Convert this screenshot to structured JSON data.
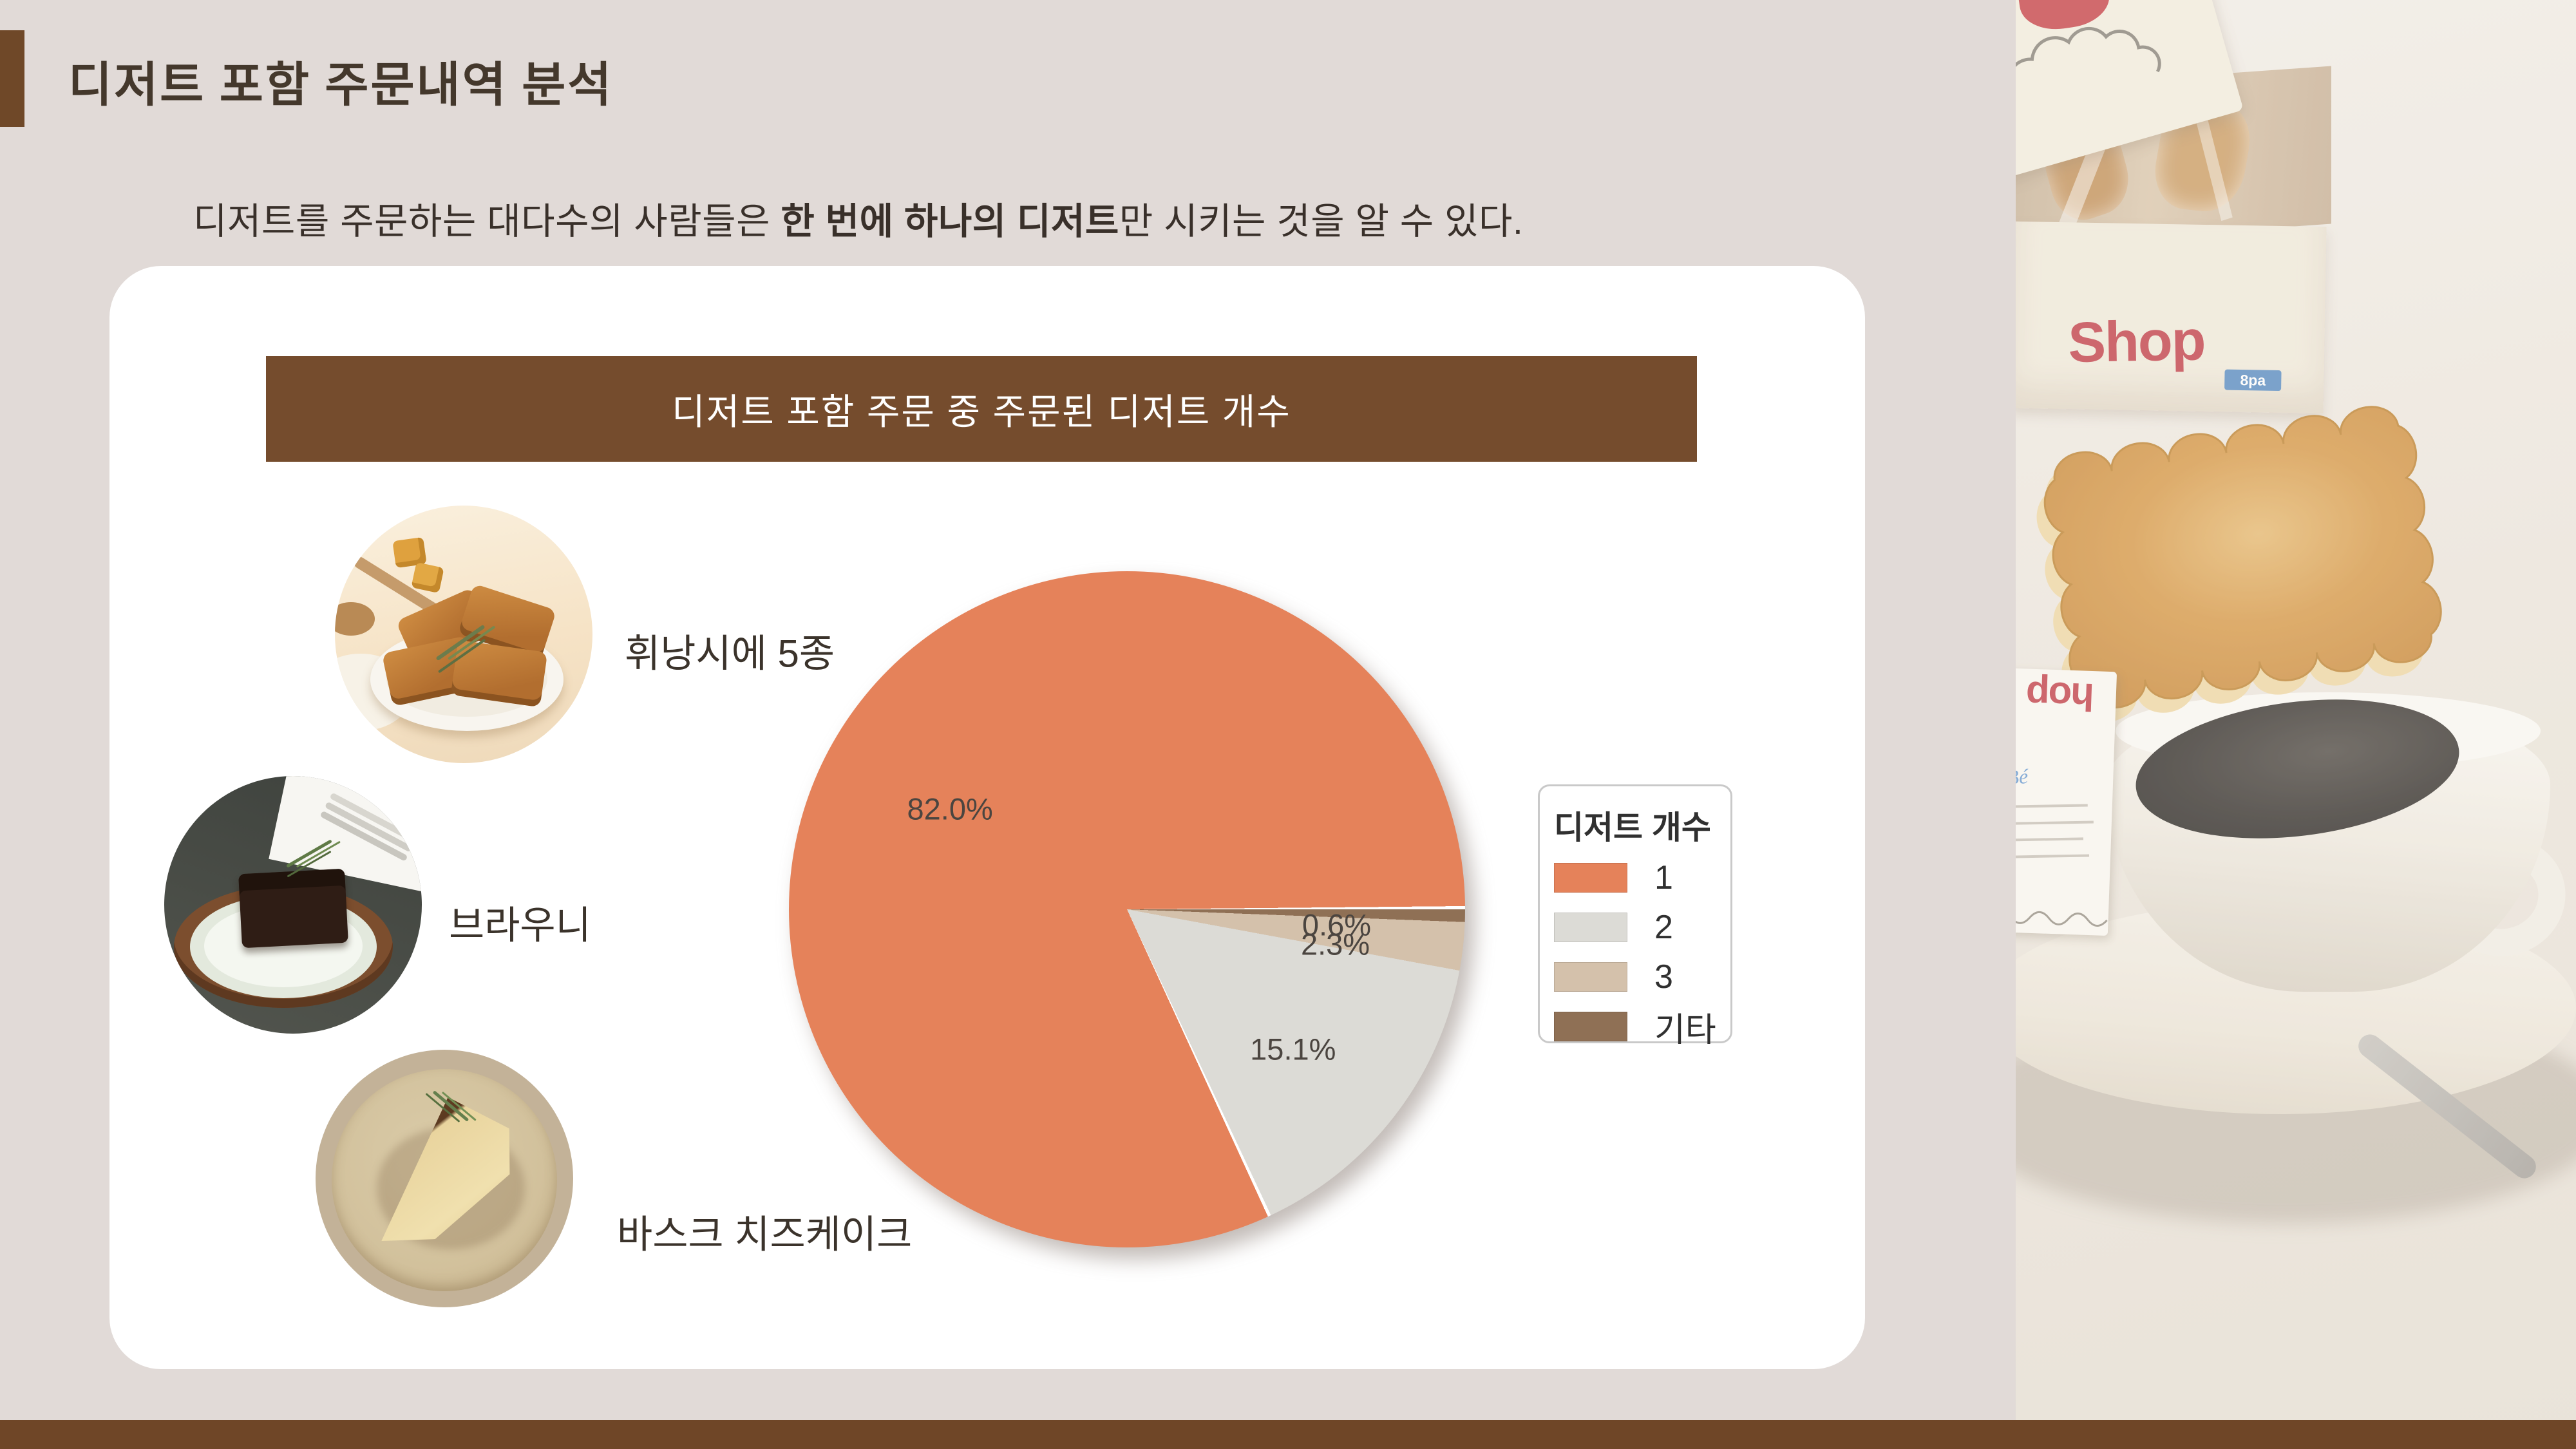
{
  "colors": {
    "background": "#E1DAD7",
    "card": "#FFFFFF",
    "accent_bar": "#6F4828",
    "banner_bg": "#754C2D",
    "banner_text": "#FFFFFF",
    "title_text": "#44382C",
    "subtitle_text": "#39302A",
    "label_text": "#3B332B",
    "pct_text": "#4B4540",
    "legend_border": "#C9C9C9",
    "legend_text": "#303030",
    "footer": "#6F4627"
  },
  "header": {
    "title": "디저트 포함 주문내역 분석"
  },
  "subtitle": {
    "pre": "디저트를 주문하는 대다수의 사람들은 ",
    "bold": "한 번에 하나의 디저트",
    "post": "만 시키는 것을 알 수 있다."
  },
  "foods": [
    {
      "label": "휘낭시에 5종"
    },
    {
      "label": "브라우니"
    },
    {
      "label": "바스크 치즈케이크"
    }
  ],
  "chart_data": {
    "type": "pie",
    "title": "디저트 포함 주문 중 주문된 디저트 개수",
    "legend_title": "디저트 개수",
    "labels": [
      "1",
      "2",
      "3",
      "기타"
    ],
    "values": [
      82.0,
      15.1,
      2.3,
      0.6
    ],
    "pct_labels": [
      "82.0%",
      "15.1%",
      "2.3%",
      "0.6%"
    ],
    "colors": [
      "#E5825A",
      "#DCDBD6",
      "#D4C1AB",
      "#8F7055"
    ],
    "start_angle": 0,
    "counterclock": true,
    "legend_position": "right"
  },
  "photo": {
    "box_brand": "Shop",
    "box_count_tag": "8pa",
    "card_brand": "hop",
    "card_script": "Bé"
  }
}
